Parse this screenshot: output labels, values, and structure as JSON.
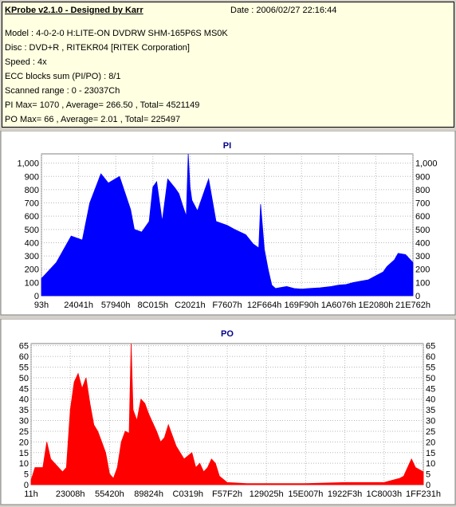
{
  "header": {
    "title": "KProbe v2.1.0 - Designed by Karr",
    "date": "Date : 2006/02/27 22:16:44",
    "lines": [
      "Model : 4-0-2-0 H:LITE-ON DVDRW SHM-165P6S MS0K",
      "Disc : DVD+R , RITEKR04 [RITEK Corporation]",
      "Speed : 4x",
      "ECC blocks sum (PI/PO) : 8/1",
      "Scanned range : 0 - 23037Ch",
      "PI Max= 1070 , Average= 266.50 , Total= 4521149",
      "PO Max= 66 , Average= 2.01 , Total= 225497"
    ]
  },
  "chart_data": [
    {
      "type": "area",
      "title": "PI",
      "color": "#0000ff",
      "xlabel": "",
      "ylabel": "",
      "ylim": [
        0,
        1070
      ],
      "yticks": [
        0,
        100,
        200,
        300,
        400,
        500,
        600,
        700,
        800,
        900,
        1000
      ],
      "ytick_labels": [
        "0",
        "100",
        "200",
        "300",
        "400",
        "500",
        "600",
        "700",
        "800",
        "900",
        "1,000"
      ],
      "xtick_labels": [
        "93h",
        "24041h",
        "57940h",
        "8C015h",
        "C2021h",
        "F7607h",
        "12F664h",
        "169F90h",
        "1A6076h",
        "1E2080h",
        "21E762h"
      ],
      "grid": true,
      "x_pos": [
        0,
        0.04,
        0.08,
        0.11,
        0.13,
        0.16,
        0.18,
        0.21,
        0.24,
        0.25,
        0.27,
        0.29,
        0.3,
        0.31,
        0.325,
        0.34,
        0.36,
        0.37,
        0.38,
        0.39,
        0.395,
        0.4,
        0.405,
        0.42,
        0.44,
        0.45,
        0.47,
        0.5,
        0.52,
        0.55,
        0.57,
        0.585,
        0.59,
        0.6,
        0.61,
        0.62,
        0.63,
        0.64,
        0.66,
        0.68,
        0.7,
        0.72,
        0.75,
        0.78,
        0.8,
        0.82,
        0.84,
        0.86,
        0.88,
        0.9,
        0.92,
        0.93,
        0.95,
        0.96,
        0.98,
        1.0
      ],
      "values": [
        130,
        250,
        450,
        420,
        700,
        920,
        850,
        900,
        650,
        500,
        480,
        560,
        820,
        860,
        560,
        880,
        810,
        770,
        680,
        600,
        1070,
        820,
        720,
        640,
        800,
        880,
        560,
        530,
        500,
        460,
        390,
        360,
        690,
        350,
        200,
        80,
        55,
        60,
        70,
        55,
        50,
        55,
        60,
        70,
        80,
        85,
        100,
        110,
        120,
        150,
        180,
        220,
        270,
        320,
        310,
        250
      ]
    },
    {
      "type": "area",
      "title": "PO",
      "color": "#ff0000",
      "xlabel": "",
      "ylabel": "",
      "ylim": [
        0,
        66
      ],
      "yticks": [
        0,
        5,
        10,
        15,
        20,
        25,
        30,
        35,
        40,
        45,
        50,
        55,
        60,
        65
      ],
      "ytick_labels": [
        "0",
        "5",
        "10",
        "15",
        "20",
        "25",
        "30",
        "35",
        "40",
        "45",
        "50",
        "55",
        "60",
        "65"
      ],
      "xtick_labels": [
        "11h",
        "23008h",
        "55420h",
        "89824h",
        "C0319h",
        "F57F2h",
        "129025h",
        "15E007h",
        "1922F3h",
        "1C8003h",
        "1FF231h"
      ],
      "grid": true,
      "x_pos": [
        0,
        0.01,
        0.03,
        0.04,
        0.05,
        0.06,
        0.08,
        0.09,
        0.1,
        0.11,
        0.12,
        0.13,
        0.14,
        0.15,
        0.16,
        0.17,
        0.18,
        0.19,
        0.2,
        0.21,
        0.22,
        0.23,
        0.24,
        0.25,
        0.255,
        0.26,
        0.27,
        0.28,
        0.29,
        0.3,
        0.32,
        0.33,
        0.34,
        0.35,
        0.37,
        0.39,
        0.41,
        0.42,
        0.43,
        0.44,
        0.45,
        0.46,
        0.47,
        0.48,
        0.5,
        0.55,
        0.6,
        0.7,
        0.8,
        0.85,
        0.86,
        0.88,
        0.9,
        0.92,
        0.94,
        0.95,
        0.96,
        0.97,
        0.98,
        1.0
      ],
      "values": [
        2,
        8,
        8,
        20,
        12,
        10,
        6,
        8,
        35,
        48,
        52,
        45,
        50,
        38,
        28,
        25,
        20,
        15,
        5,
        3,
        8,
        20,
        25,
        24,
        66,
        35,
        30,
        40,
        38,
        33,
        25,
        20,
        22,
        28,
        18,
        12,
        15,
        8,
        10,
        6,
        8,
        12,
        10,
        4,
        1,
        0.5,
        0.5,
        0.5,
        1,
        1,
        1,
        1,
        1,
        2,
        3,
        4,
        8,
        12,
        8,
        6
      ]
    }
  ]
}
